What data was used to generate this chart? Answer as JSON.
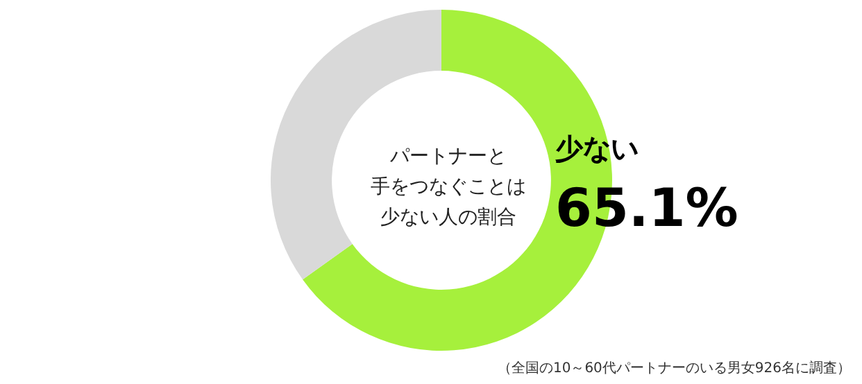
{
  "chart_data": {
    "type": "donut",
    "title": "パートナーと手をつなぐことは少ない人の割合",
    "categories": [
      "少ない",
      null
    ],
    "values": [
      65.1,
      34.9
    ],
    "colors": [
      "#a6f03c",
      "#d9d9d9"
    ],
    "value_labels": [
      "65.1%",
      null
    ],
    "annotations": [
      "（全国の10～60代パートナーのいる男女926名に調査）"
    ]
  }
}
